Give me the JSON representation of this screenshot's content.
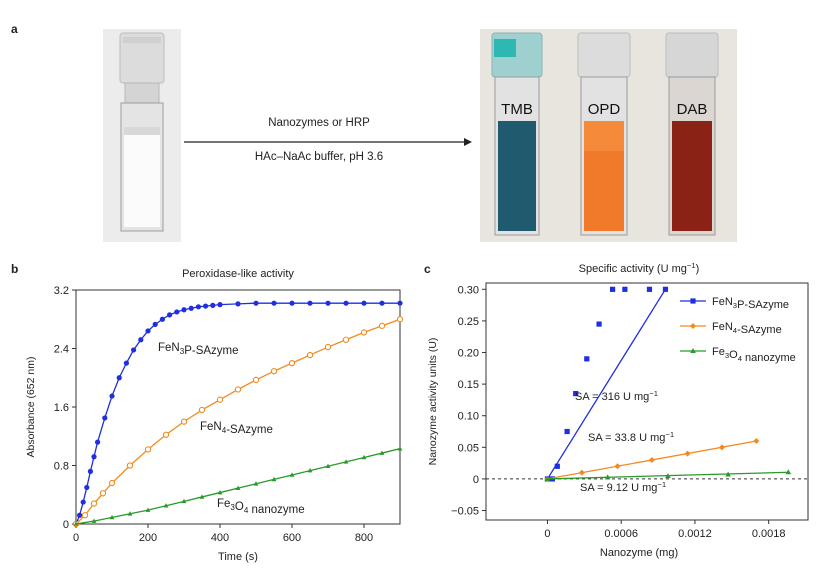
{
  "panel_a": {
    "letter": "a",
    "arrow_top_label": "Nanozymes or HRP",
    "arrow_bottom_label": "HAc–NaAc buffer, pH 3.6",
    "vial_labels": [
      "TMB",
      "OPD",
      "DAB"
    ],
    "colors": {
      "tmb": "#1f5a6e",
      "opd": "#f07a2a",
      "dab": "#8a2316",
      "blank": "#f4f4f4"
    }
  },
  "chart_data": [
    {
      "panel": "b",
      "type": "line",
      "title": "Peroxidase-like activity",
      "xlabel": "Time (s)",
      "ylabel": "Absorbance (652 nm)",
      "xlim": [
        0,
        900
      ],
      "ylim": [
        0,
        3.2
      ],
      "xticks": [
        0,
        200,
        400,
        600,
        800
      ],
      "yticks": [
        0,
        0.8,
        1.6,
        2.4,
        3.2
      ],
      "series": [
        {
          "name": "FeN3P-SAzyme",
          "label_main": "FeN",
          "label_sub": "3",
          "label_rest": "P-SAzyme",
          "color": "#1f2fe0",
          "x": [
            0,
            10,
            20,
            30,
            40,
            50,
            60,
            80,
            100,
            120,
            140,
            160,
            180,
            200,
            220,
            240,
            260,
            280,
            300,
            320,
            340,
            360,
            380,
            400,
            450,
            500,
            550,
            600,
            650,
            700,
            750,
            800,
            850,
            900
          ],
          "y": [
            0,
            0.12,
            0.3,
            0.5,
            0.72,
            0.92,
            1.12,
            1.45,
            1.75,
            2.0,
            2.2,
            2.38,
            2.52,
            2.64,
            2.73,
            2.8,
            2.86,
            2.9,
            2.93,
            2.95,
            2.97,
            2.98,
            2.99,
            3.0,
            3.01,
            3.02,
            3.02,
            3.02,
            3.02,
            3.02,
            3.02,
            3.02,
            3.02,
            3.02
          ]
        },
        {
          "name": "FeN4-SAzyme",
          "label_main": "FeN",
          "label_sub": "4",
          "label_rest": "-SAzyme",
          "color": "#f28a1e",
          "x": [
            0,
            25,
            50,
            75,
            100,
            150,
            200,
            250,
            300,
            350,
            400,
            450,
            500,
            550,
            600,
            650,
            700,
            750,
            800,
            850,
            900
          ],
          "y": [
            0,
            0.12,
            0.28,
            0.42,
            0.56,
            0.8,
            1.02,
            1.22,
            1.4,
            1.56,
            1.7,
            1.84,
            1.97,
            2.09,
            2.2,
            2.31,
            2.42,
            2.52,
            2.62,
            2.71,
            2.8
          ]
        },
        {
          "name": "Fe3O4 nanozyme",
          "label_main": "Fe",
          "label_sub": "3",
          "label_rest": "O",
          "label_sub2": "4",
          "label_tail": " nanozyme",
          "color": "#2a9a2a",
          "x": [
            0,
            50,
            100,
            150,
            200,
            250,
            300,
            350,
            400,
            450,
            500,
            550,
            600,
            650,
            700,
            750,
            800,
            850,
            900
          ],
          "y": [
            0,
            0.04,
            0.09,
            0.14,
            0.19,
            0.25,
            0.31,
            0.37,
            0.43,
            0.49,
            0.55,
            0.61,
            0.67,
            0.73,
            0.79,
            0.85,
            0.91,
            0.97,
            1.03
          ]
        }
      ]
    },
    {
      "panel": "c",
      "type": "scatter",
      "title": "Specific activity (U mg",
      "title_sup": "−1",
      "title_close": ")",
      "xlabel": "Nanozyme (mg)",
      "ylabel": "Nanozyme activity units (U)",
      "xlim": [
        -0.0005,
        0.00212
      ],
      "ylim": [
        -0.065,
        0.31
      ],
      "xticks": [
        0,
        0.0006,
        0.0012,
        0.0018
      ],
      "xtick_labels": [
        "0",
        "0.0006",
        "0.0012",
        "0.0018"
      ],
      "yticks": [
        -0.05,
        0,
        0.05,
        0.1,
        0.15,
        0.2,
        0.25,
        0.3
      ],
      "ytick_labels": [
        "−0.05",
        "0",
        "0.05",
        "0.10",
        "0.15",
        "0.20",
        "0.25",
        "0.30"
      ],
      "legend": "top-right",
      "series": [
        {
          "name": "FeN3P-SAzyme",
          "label_main": "FeN",
          "label_sub": "3",
          "label_rest": "P-SAzyme",
          "color": "#1f2fe0",
          "marker": "square",
          "x": [
            0,
            4e-05,
            8e-05,
            0.00016,
            0.00023,
            0.00032,
            0.00042,
            0.00053,
            0.00063,
            0.00083,
            0.00096
          ],
          "y": [
            0,
            0.0,
            0.02,
            0.075,
            0.135,
            0.19,
            0.245,
            0.3,
            0.3,
            0.3,
            0.3
          ]
        },
        {
          "name": "FeN4-SAzyme",
          "label_main": "FeN",
          "label_sub": "4",
          "label_rest": "-SAzyme",
          "color": "#f28a1e",
          "marker": "diamond",
          "x": [
            0,
            0.00028,
            0.00057,
            0.00085,
            0.00114,
            0.00142,
            0.0017
          ],
          "y": [
            0,
            0.01,
            0.02,
            0.03,
            0.04,
            0.05,
            0.06
          ]
        },
        {
          "name": "Fe3O4 nanozyme",
          "label_main": "Fe",
          "label_sub": "3",
          "label_rest": "O",
          "label_sub2": "4",
          "label_tail": " nanozyme",
          "color": "#2a9a2a",
          "marker": "triangle",
          "x": [
            0,
            0.00049,
            0.00098,
            0.00147,
            0.00196
          ],
          "y": [
            0,
            0.0025,
            0.0045,
            0.007,
            0.0105
          ]
        }
      ],
      "annotations": [
        {
          "text": "SA = 316 U mg",
          "sup": "−1"
        },
        {
          "text": "SA = 33.8 U mg",
          "sup": "−1"
        },
        {
          "text": "SA = 9.12 U mg",
          "sup": "−1"
        }
      ]
    }
  ]
}
